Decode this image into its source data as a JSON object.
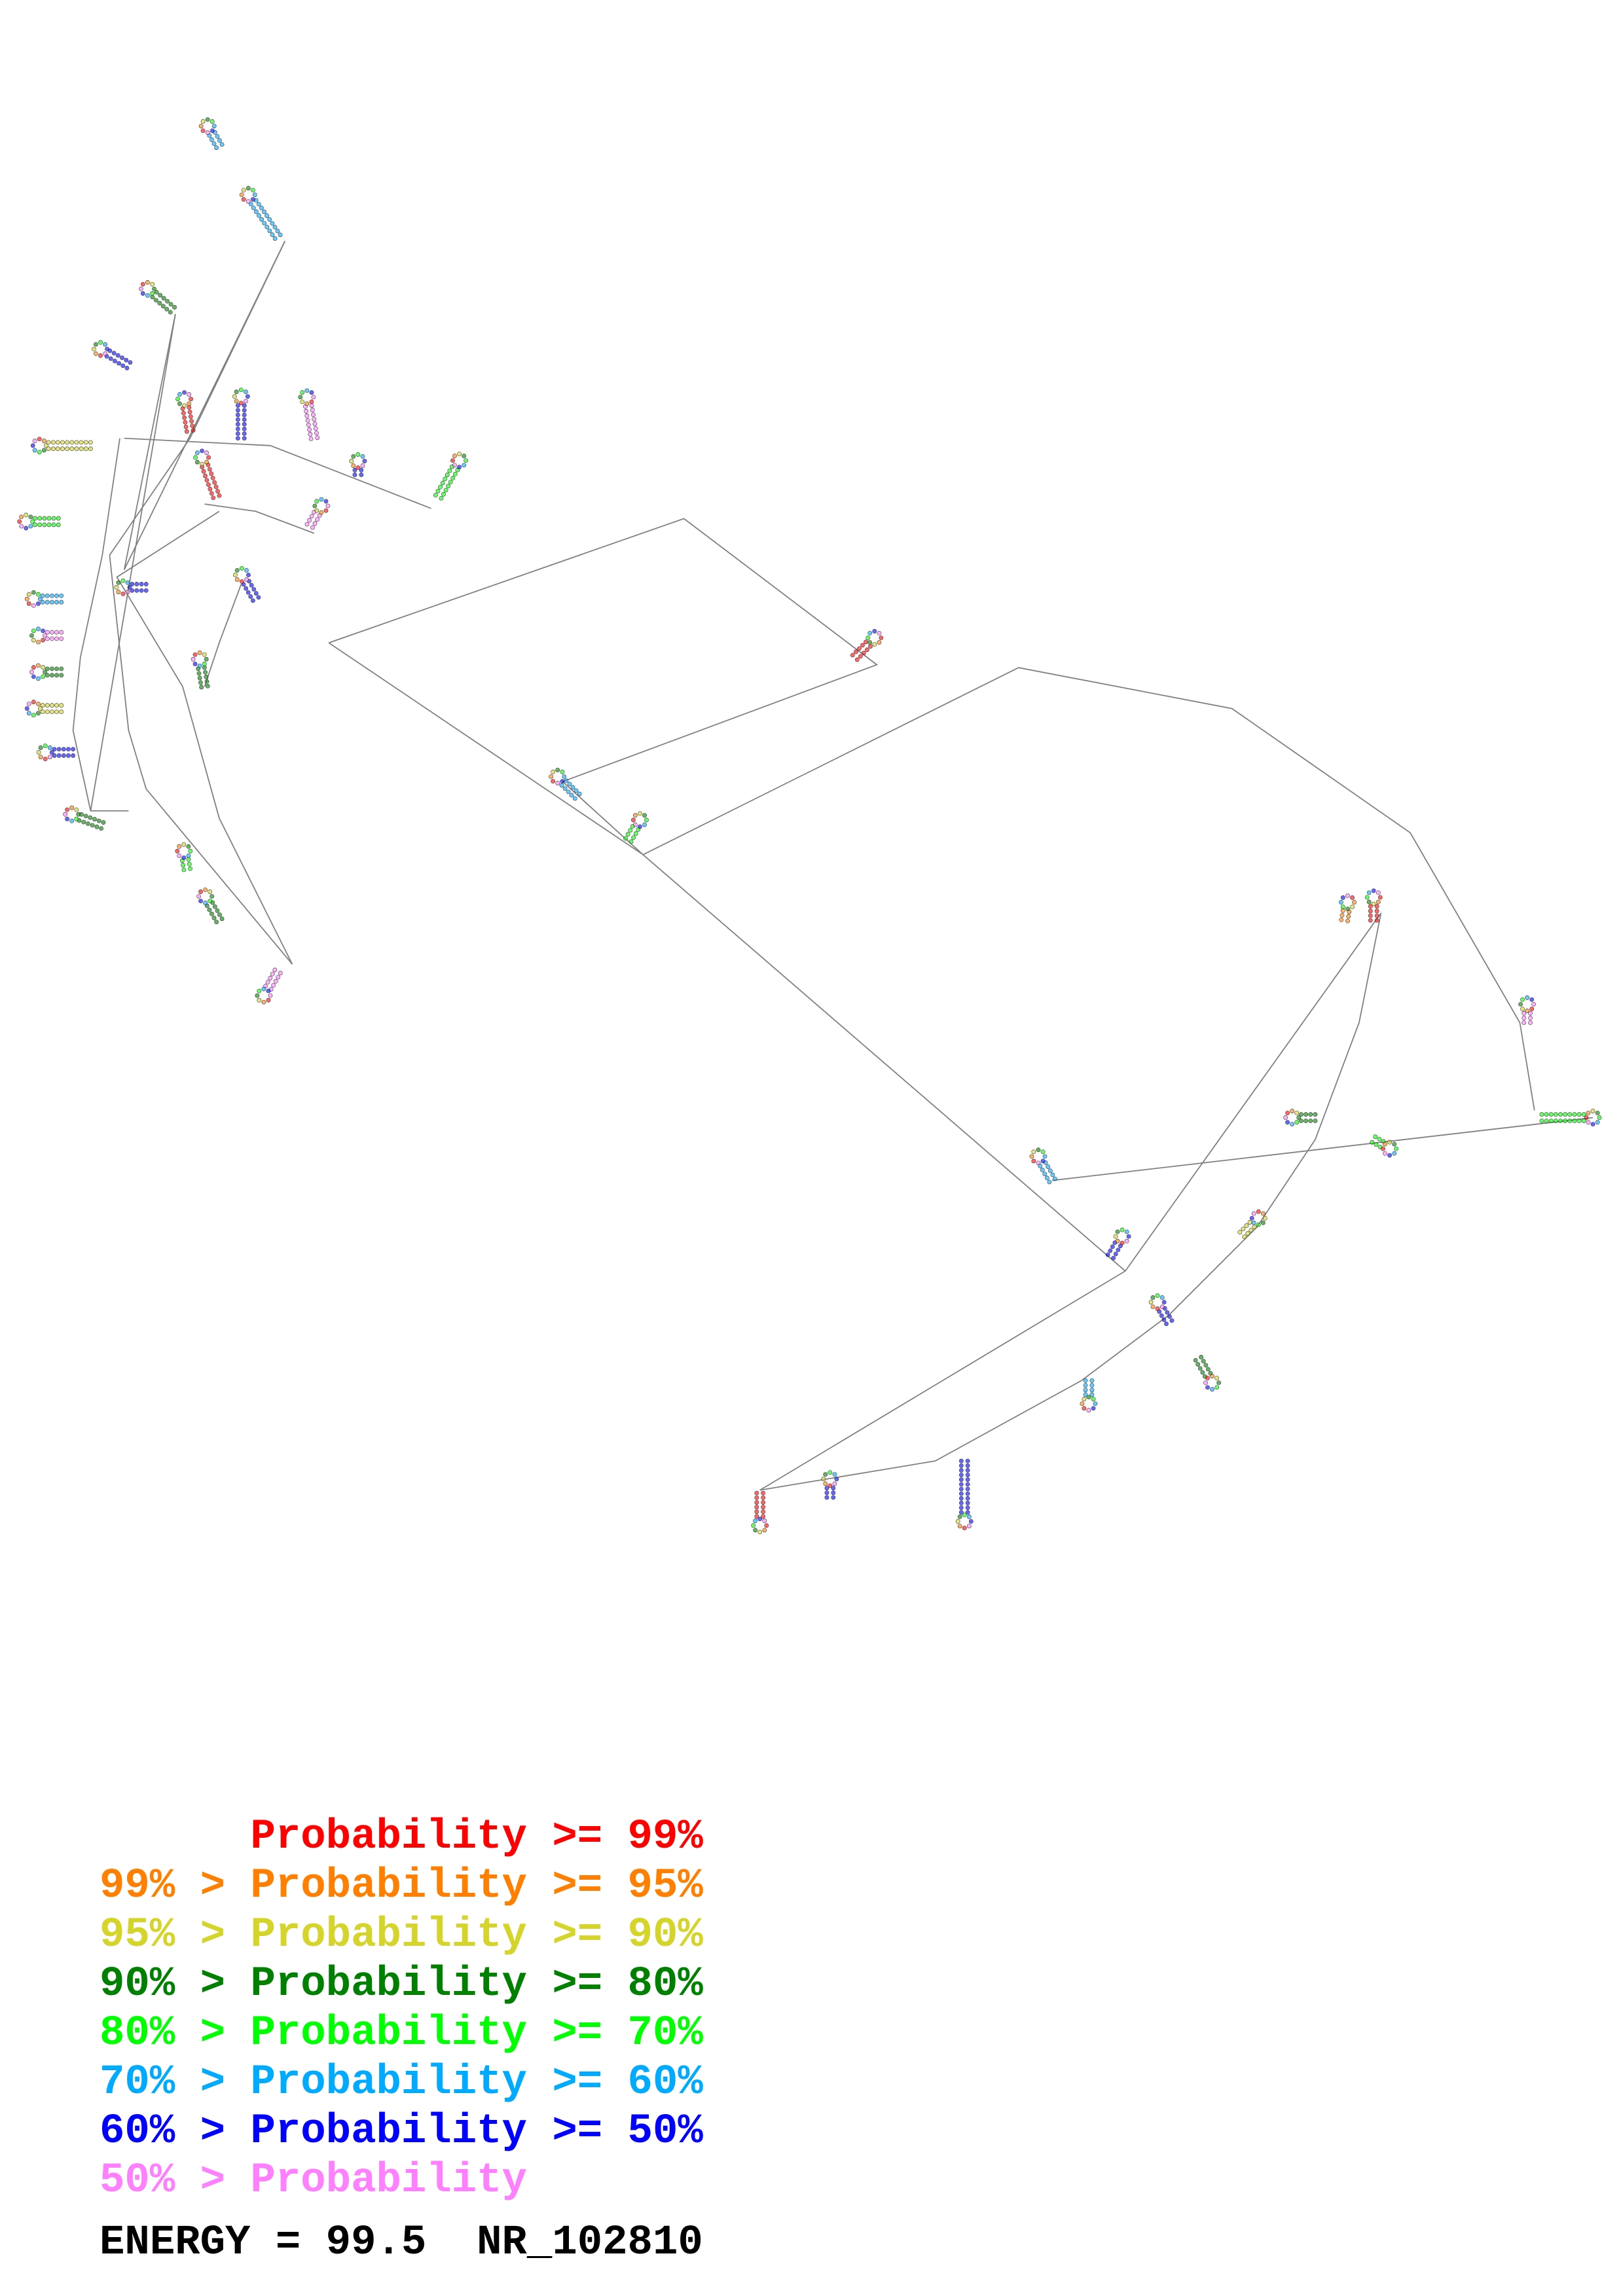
{
  "legend": {
    "rows": [
      {
        "prefix": "",
        "label": "Probability",
        "suffix": " >= 99%",
        "color": "#ff0000"
      },
      {
        "prefix": "99% > ",
        "label": "Probability",
        "suffix": " >= 95%",
        "color": "#ff8000"
      },
      {
        "prefix": "95% > ",
        "label": "Probability",
        "suffix": " >= 90%",
        "color": "#d4d42a"
      },
      {
        "prefix": "90% > ",
        "label": "Probability",
        "suffix": " >= 80%",
        "color": "#008000"
      },
      {
        "prefix": "80% > ",
        "label": "Probability",
        "suffix": " >= 70%",
        "color": "#00ff00"
      },
      {
        "prefix": "70% > ",
        "label": "Probability",
        "suffix": " >= 60%",
        "color": "#00aaff"
      },
      {
        "prefix": "60% > ",
        "label": "Probability",
        "suffix": " >= 50%",
        "color": "#0000ff"
      },
      {
        "prefix": "50% > ",
        "label": "Probability",
        "suffix": "",
        "color": "#ff80ff"
      }
    ]
  },
  "footer": {
    "energy_label": "ENERGY = 99.5",
    "sequence_id": "NR_102810"
  },
  "diagram": {
    "type": "RNA secondary structure",
    "backbone_color": "#808080"
  }
}
